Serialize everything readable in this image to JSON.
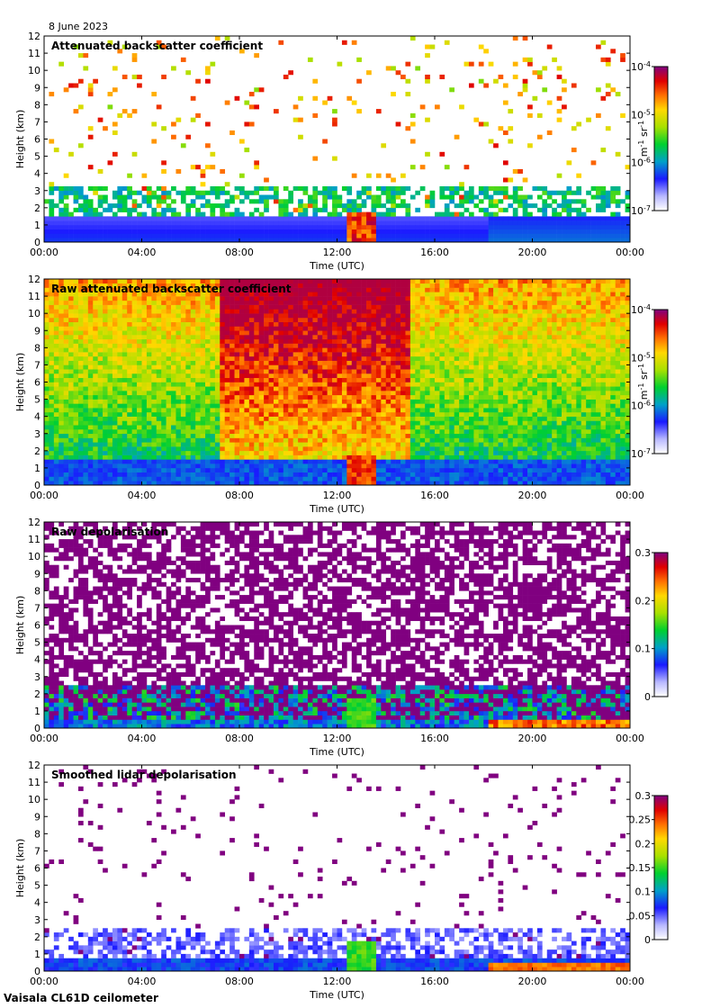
{
  "date": "8 June 2023",
  "footer": "Vaisala CL61D ceilometer",
  "chart_data": [
    {
      "type": "heatmap",
      "title": "Attenuated backscatter coefficient",
      "xlabel": "Time (UTC)",
      "ylabel": "Height (km)",
      "xticks": [
        "00:00",
        "04:00",
        "08:00",
        "12:00",
        "16:00",
        "20:00",
        "00:00"
      ],
      "yticks": [
        0,
        1,
        2,
        3,
        4,
        5,
        6,
        7,
        8,
        9,
        10,
        11,
        12
      ],
      "xlim_hours": [
        0,
        24
      ],
      "ylim_km": [
        0,
        12
      ],
      "colorbar": {
        "scale": "log",
        "min": 1e-07,
        "max": 0.0001,
        "unit_base": "m",
        "unit_exp": "-1",
        "unit_base2": "sr",
        "unit_exp2": "-1",
        "ticks": [
          {
            "base": "10",
            "exp": "-4",
            "v": 0.0001
          },
          {
            "base": "10",
            "exp": "-5",
            "v": 1e-05
          },
          {
            "base": "10",
            "exp": "-6",
            "v": 1e-06
          },
          {
            "base": "10",
            "exp": "-7",
            "v": 1e-07
          }
        ]
      }
    },
    {
      "type": "heatmap",
      "title": "Raw attenuated backscatter coefficient",
      "xlabel": "Time (UTC)",
      "ylabel": "Height (km)",
      "xticks": [
        "00:00",
        "04:00",
        "08:00",
        "12:00",
        "16:00",
        "20:00",
        "00:00"
      ],
      "yticks": [
        0,
        1,
        2,
        3,
        4,
        5,
        6,
        7,
        8,
        9,
        10,
        11,
        12
      ],
      "xlim_hours": [
        0,
        24
      ],
      "ylim_km": [
        0,
        12
      ],
      "colorbar": {
        "scale": "log",
        "min": 1e-07,
        "max": 0.0001,
        "unit_base": "m",
        "unit_exp": "-1",
        "unit_base2": "sr",
        "unit_exp2": "-1",
        "ticks": [
          {
            "base": "10",
            "exp": "-4",
            "v": 0.0001
          },
          {
            "base": "10",
            "exp": "-5",
            "v": 1e-05
          },
          {
            "base": "10",
            "exp": "-6",
            "v": 1e-06
          },
          {
            "base": "10",
            "exp": "-7",
            "v": 1e-07
          }
        ]
      }
    },
    {
      "type": "heatmap",
      "title": "Raw depolarisation",
      "xlabel": "Time (UTC)",
      "ylabel": "Height (km)",
      "xticks": [
        "00:00",
        "04:00",
        "08:00",
        "12:00",
        "16:00",
        "20:00",
        "00:00"
      ],
      "yticks": [
        0,
        1,
        2,
        3,
        4,
        5,
        6,
        7,
        8,
        9,
        10,
        11,
        12
      ],
      "xlim_hours": [
        0,
        24
      ],
      "ylim_km": [
        0,
        12
      ],
      "colorbar": {
        "scale": "linear",
        "min": 0,
        "max": 0.3,
        "ticks": [
          {
            "label": "0.3",
            "v": 0.3
          },
          {
            "label": "0.2",
            "v": 0.2
          },
          {
            "label": "0.1",
            "v": 0.1
          },
          {
            "label": "0",
            "v": 0
          }
        ]
      }
    },
    {
      "type": "heatmap",
      "title": "Smoothed lidar depolarisation",
      "xlabel": "Time (UTC)",
      "ylabel": "Height (km)",
      "xticks": [
        "00:00",
        "04:00",
        "08:00",
        "12:00",
        "16:00",
        "20:00",
        "00:00"
      ],
      "yticks": [
        0,
        1,
        2,
        3,
        4,
        5,
        6,
        7,
        8,
        9,
        10,
        11,
        12
      ],
      "xlim_hours": [
        0,
        24
      ],
      "ylim_km": [
        0,
        12
      ],
      "colorbar": {
        "scale": "linear",
        "min": 0,
        "max": 0.3,
        "ticks": [
          {
            "label": "0.3",
            "v": 0.3
          },
          {
            "label": "0.25",
            "v": 0.25
          },
          {
            "label": "0.2",
            "v": 0.2
          },
          {
            "label": "0.15",
            "v": 0.15
          },
          {
            "label": "0.1",
            "v": 0.1
          },
          {
            "label": "0.05",
            "v": 0.05
          },
          {
            "label": "0",
            "v": 0
          }
        ]
      }
    }
  ]
}
